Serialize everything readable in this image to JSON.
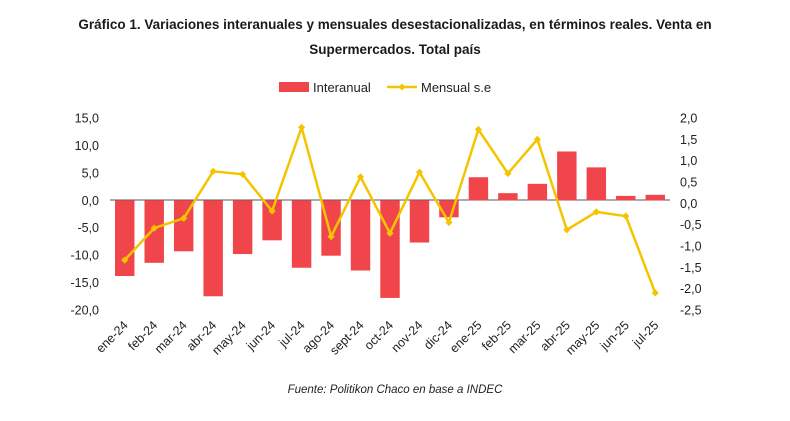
{
  "chart_data": {
    "type": "bar+line",
    "title_line1": "Gráfico 1. Variaciones interanuales y mensuales desestacionalizadas, en términos reales. Venta en",
    "title_line2": "Supermercados. Total país",
    "source": "Fuente: Politikon Chaco en base a INDEC",
    "categories": [
      "ene-24",
      "feb-24",
      "mar-24",
      "abr-24",
      "may-24",
      "jun-24",
      "jul-24",
      "ago-24",
      "sept-24",
      "oct-24",
      "nov-24",
      "dic-24",
      "ene-25",
      "feb-25",
      "mar-25",
      "abr-25",
      "may-25",
      "jun-25",
      "jul-25"
    ],
    "series": [
      {
        "name": "Interanual",
        "kind": "bar",
        "axis": "left",
        "color": "#f0464b",
        "values": [
          -13.8,
          -11.4,
          -9.3,
          -17.5,
          -9.8,
          -7.3,
          -12.3,
          -10.1,
          -12.8,
          -17.8,
          -7.7,
          -3.1,
          4.2,
          1.3,
          3.0,
          8.9,
          6.0,
          0.8,
          1.0
        ]
      },
      {
        "name": "Mensual s.e",
        "kind": "line",
        "axis": "right",
        "color": "#f5c400",
        "values": [
          -1.33,
          -0.58,
          -0.35,
          0.75,
          0.68,
          -0.18,
          1.78,
          -0.78,
          0.62,
          -0.7,
          0.73,
          -0.45,
          1.73,
          0.7,
          1.5,
          -0.62,
          -0.2,
          -0.3,
          -2.1
        ]
      }
    ],
    "left_axis": {
      "ylim": [
        -20,
        15
      ],
      "ticks": [
        "15,0",
        "10,0",
        "5,0",
        "0,0",
        "-5,0",
        "-10,0",
        "-15,0",
        "-20,0"
      ]
    },
    "right_axis": {
      "ylim": [
        -2.5,
        2.0
      ],
      "ticks": [
        "2,0",
        "1,5",
        "1,0",
        "0,5",
        "0,0",
        "-0,5",
        "-1,0",
        "-1,5",
        "-2,0",
        "-2,5"
      ]
    },
    "legend": {
      "position": "top-center",
      "labels": [
        "Interanual",
        "Mensual s.e"
      ]
    }
  }
}
